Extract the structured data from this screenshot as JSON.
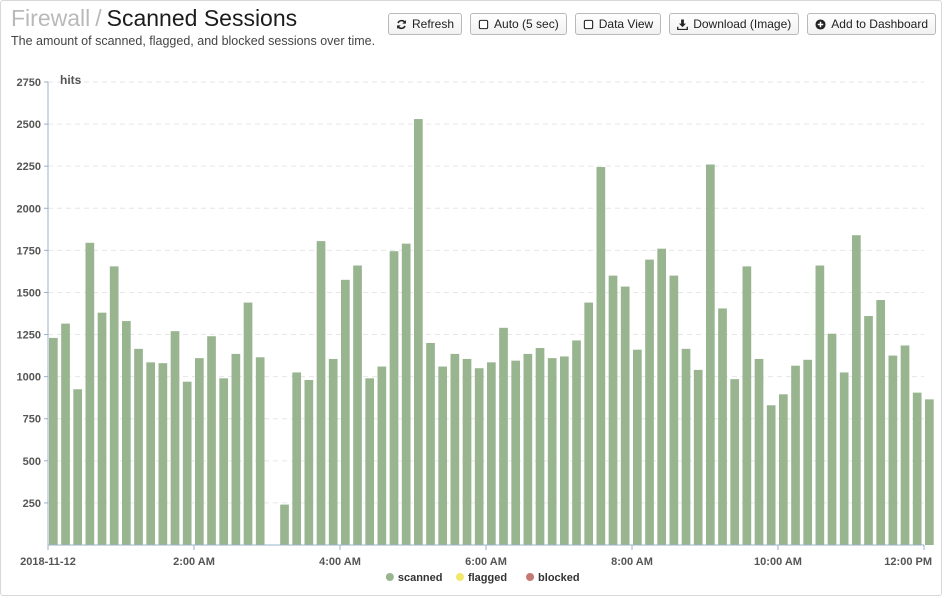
{
  "header": {
    "breadcrumb": "Firewall",
    "separator": "/",
    "title": "Scanned Sessions",
    "subtitle": "The amount of scanned, flagged, and blocked sessions over time."
  },
  "toolbar": {
    "refresh": "Refresh",
    "auto": "Auto (5 sec)",
    "data_view": "Data View",
    "download": "Download (Image)",
    "add_dashboard": "Add to Dashboard"
  },
  "colors": {
    "scanned": "#98b590",
    "flagged": "#f2e66b",
    "blocked": "#c47a72",
    "axis": "#9ab0c8",
    "grid": "#e6e6e6"
  },
  "chart_data": {
    "type": "bar",
    "ylabel": "hits",
    "ylim": [
      0,
      2750
    ],
    "yticks": [
      250,
      500,
      750,
      1000,
      1250,
      1500,
      1750,
      2000,
      2250,
      2500,
      2750
    ],
    "grid": true,
    "legend_position": "bottom",
    "bin_minutes": 10,
    "x_start": "2018-11-12 00:00",
    "x_end": "2018-11-12 12:00",
    "xticks": [
      {
        "at": "2018-11-12 00:00",
        "label": "2018-11-12"
      },
      {
        "at": "2018-11-12 02:00",
        "label": "2:00 AM"
      },
      {
        "at": "2018-11-12 04:00",
        "label": "4:00 AM"
      },
      {
        "at": "2018-11-12 06:00",
        "label": "6:00 AM"
      },
      {
        "at": "2018-11-12 08:00",
        "label": "8:00 AM"
      },
      {
        "at": "2018-11-12 10:00",
        "label": "10:00 AM"
      },
      {
        "at": "2018-11-12 12:00",
        "label": "12:00 PM"
      }
    ],
    "series": [
      {
        "name": "scanned",
        "values": [
          1230,
          1315,
          925,
          1795,
          1380,
          1655,
          1330,
          1165,
          1085,
          1080,
          1270,
          970,
          1110,
          1240,
          990,
          1135,
          1440,
          1115,
          null,
          240,
          1025,
          980,
          1805,
          1105,
          1575,
          1660,
          990,
          1060,
          1745,
          1790,
          2530,
          1200,
          1060,
          1135,
          1105,
          1050,
          1085,
          1290,
          1095,
          1135,
          1170,
          1110,
          1120,
          1215,
          1440,
          2245,
          1600,
          1535,
          1160,
          1695,
          1760,
          1600,
          1165,
          1040,
          2260,
          1405,
          985,
          1655,
          1105,
          830,
          895,
          1065,
          1100,
          1660,
          1255,
          1025,
          1840,
          1360,
          1455,
          1125,
          1185,
          905,
          865
        ]
      },
      {
        "name": "flagged",
        "values": []
      },
      {
        "name": "blocked",
        "values": []
      }
    ]
  }
}
